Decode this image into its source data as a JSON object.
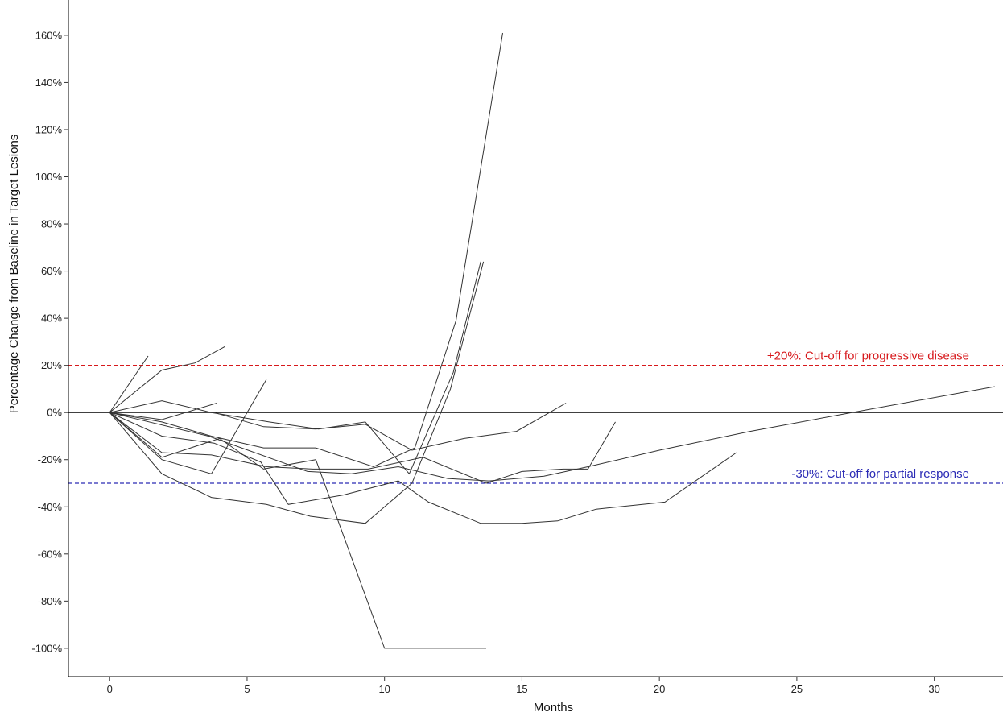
{
  "chart_data": {
    "type": "line",
    "title": "",
    "xlabel": "Months",
    "ylabel": "Percentage Change from Baseline in Target Lesions",
    "xlim": [
      -1.5,
      32.5
    ],
    "ylim": [
      -112,
      175
    ],
    "x_ticks": [
      0,
      5,
      10,
      15,
      20,
      25,
      30
    ],
    "y_ticks": [
      -100,
      -80,
      -60,
      -40,
      -20,
      0,
      20,
      40,
      60,
      80,
      100,
      120,
      140,
      160
    ],
    "x_tick_labels": [
      "0",
      "5",
      "10",
      "15",
      "20",
      "25",
      "30"
    ],
    "y_tick_labels": [
      "-100%",
      "-80%",
      "-60%",
      "-40%",
      "-20%",
      "0%",
      "20%",
      "40%",
      "60%",
      "80%",
      "100%",
      "120%",
      "140%",
      "160%"
    ],
    "grid": false,
    "colors": {
      "series": "#333333",
      "zero_line": "#000000",
      "progressive": "#d7191c",
      "partial": "#2b2bb5"
    },
    "reference_lines": [
      {
        "y": 0,
        "label": "",
        "style": "solid",
        "color": "#000000"
      },
      {
        "y": 20,
        "label": "+20%: Cut-off for progressive disease",
        "style": "dashed",
        "color": "#d7191c"
      },
      {
        "y": -30,
        "label": "-30%: Cut-off for partial response",
        "style": "dashed",
        "color": "#2b2bb5"
      }
    ],
    "series": [
      {
        "x": [
          0,
          1.4
        ],
        "y": [
          0,
          24
        ]
      },
      {
        "x": [
          0,
          1.9,
          3.1,
          4.2
        ],
        "y": [
          0,
          18,
          21,
          28
        ]
      },
      {
        "x": [
          0,
          1.9,
          3.9
        ],
        "y": [
          0,
          -3,
          4
        ]
      },
      {
        "x": [
          0,
          1.9,
          3.7,
          5.7
        ],
        "y": [
          0,
          -20,
          -26,
          14
        ]
      },
      {
        "x": [
          0,
          1.9,
          3.7,
          5.8,
          7.6,
          9.3,
          10.9,
          12.5,
          13.5
        ],
        "y": [
          0,
          5,
          0,
          -4,
          -7,
          -4,
          -26,
          17,
          64
        ]
      },
      {
        "x": [
          0,
          1.9,
          3.7,
          5.6,
          7.5,
          9.6,
          11.1,
          12.6,
          14.3
        ],
        "y": [
          0,
          -4,
          -10,
          -15,
          -15,
          -23,
          -15,
          39,
          161
        ]
      },
      {
        "x": [
          0,
          1.9,
          3.7,
          5.7,
          7.3,
          9.3,
          11.0,
          12.4,
          13.6
        ],
        "y": [
          0,
          -26,
          -36,
          -39,
          -44,
          -47,
          -30,
          10,
          64
        ]
      },
      {
        "x": [
          0,
          1.9,
          4.0,
          5.6,
          7.5,
          10.0,
          13.7
        ],
        "y": [
          0,
          -19,
          -11,
          -24,
          -20,
          -100,
          -100
        ]
      },
      {
        "x": [
          0,
          1.9,
          3.7,
          5.7,
          7.4,
          9.4,
          11.4,
          13.7,
          15.0,
          16.5,
          17.4,
          18.4
        ],
        "y": [
          0,
          -17,
          -18,
          -23,
          -24,
          -24,
          -19,
          -30,
          -25,
          -24,
          -24,
          -4
        ]
      },
      {
        "x": [
          0,
          3.8,
          5.6,
          7.5,
          9.3,
          11.0,
          12.9,
          14.8,
          16.6
        ],
        "y": [
          0,
          0,
          -6,
          -7,
          -5,
          -16,
          -11,
          -8,
          4
        ]
      },
      {
        "x": [
          0,
          1.9,
          3.8,
          5.5,
          6.5,
          8.5,
          10.5,
          11.6,
          13.5,
          15.0,
          16.3,
          17.7,
          20.2,
          22.8
        ],
        "y": [
          0,
          -10,
          -13,
          -21,
          -39,
          -35,
          -29,
          -38,
          -47,
          -47,
          -46,
          -41,
          -38,
          -17
        ]
      },
      {
        "x": [
          0,
          3.6,
          7.2,
          8.8,
          10.5,
          12.3,
          13.8,
          15.8,
          17.4,
          20.0,
          23.3,
          27.0,
          32.2
        ],
        "y": [
          0,
          -10,
          -25,
          -26,
          -23,
          -28,
          -29,
          -27,
          -23,
          -16,
          -8,
          0,
          11
        ]
      }
    ]
  }
}
